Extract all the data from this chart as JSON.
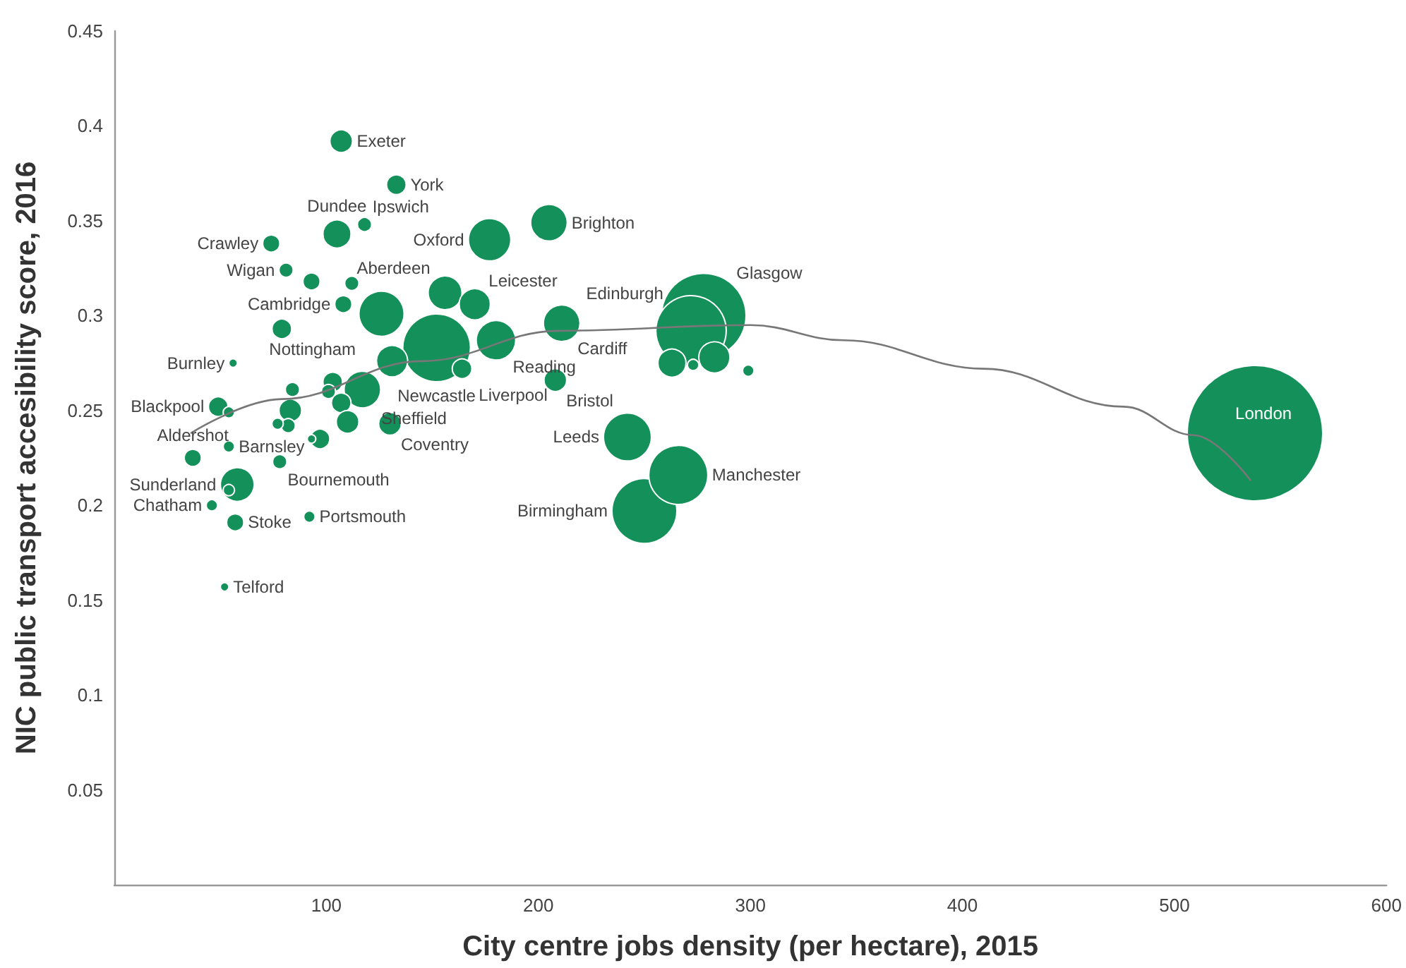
{
  "chart_data": {
    "type": "bubble",
    "xlabel": "City centre jobs density (per hectare), 2015",
    "ylabel": "NIC public transport accesibility score, 2016",
    "xlim": [
      0,
      600
    ],
    "xticks": [
      100,
      200,
      300,
      400,
      500,
      600
    ],
    "ylim": [
      0,
      0.45
    ],
    "yticks": [
      0.05,
      0.1,
      0.15,
      0.2,
      0.25,
      0.3,
      0.35,
      0.4,
      0.45
    ],
    "series": [
      {
        "color": "#14915a",
        "x": [
          538,
          278,
          272,
          250,
          266,
          242,
          152,
          126,
          177,
          205,
          211,
          180,
          156,
          170,
          107,
          133,
          105,
          118,
          74,
          81,
          93,
          112,
          108,
          79,
          56,
          164,
          208,
          117,
          103,
          101,
          107,
          84,
          83,
          82,
          77,
          110,
          130,
          97,
          93,
          49,
          54,
          54,
          37,
          78,
          58,
          54,
          46,
          92,
          57,
          52,
          131,
          283,
          263,
          273,
          299
        ],
        "values": [
          0.238,
          0.3,
          0.292,
          0.197,
          0.216,
          0.236,
          0.283,
          0.301,
          0.34,
          0.349,
          0.296,
          0.287,
          0.312,
          0.306,
          0.392,
          0.369,
          0.343,
          0.348,
          0.338,
          0.324,
          0.318,
          0.317,
          0.306,
          0.293,
          0.275,
          0.272,
          0.266,
          0.261,
          0.265,
          0.26,
          0.254,
          0.261,
          0.25,
          0.242,
          0.243,
          0.244,
          0.243,
          0.235,
          0.235,
          0.252,
          0.249,
          0.231,
          0.225,
          0.223,
          0.211,
          0.208,
          0.2,
          0.194,
          0.191,
          0.157,
          0.276,
          0.278,
          0.275,
          0.274,
          0.271
        ],
        "sizes": [
          1,
          0.39,
          0.27,
          0.23,
          0.19,
          0.125,
          0.25,
          0.111,
          0.098,
          0.073,
          0.073,
          0.085,
          0.0625,
          0.053,
          0.028,
          0.021,
          0.043,
          0.011,
          0.016,
          0.011,
          0.016,
          0.011,
          0.016,
          0.021,
          0.004,
          0.021,
          0.028,
          0.073,
          0.021,
          0.011,
          0.021,
          0.011,
          0.028,
          0.011,
          0.007,
          0.028,
          0.028,
          0.021,
          0.004,
          0.021,
          0.007,
          0.007,
          0.016,
          0.011,
          0.0625,
          0.007,
          0.007,
          0.007,
          0.016,
          0.004,
          0.053,
          0.053,
          0.043,
          0.007,
          0.007
        ]
      },
      {
        "type": "line",
        "color": "#777777",
        "x": [
          36,
          79,
          145,
          210,
          300,
          344,
          410,
          476,
          509,
          536
        ],
        "values": [
          0.238,
          0.256,
          0.276,
          0.292,
          0.295,
          0.287,
          0.272,
          0.252,
          0.237,
          0.213
        ]
      }
    ],
    "annotations": [
      {
        "text": "London",
        "x": 538,
        "y": 0.238
      },
      {
        "text": "Glasgow",
        "x": 278,
        "y": 0.3
      },
      {
        "text": "Edinburgh",
        "x": 272,
        "y": 0.292
      },
      {
        "text": "Birmingham",
        "x": 250,
        "y": 0.197
      },
      {
        "text": "Manchester",
        "x": 266,
        "y": 0.216
      },
      {
        "text": "Leeds",
        "x": 242,
        "y": 0.236
      },
      {
        "text": "Newcastle",
        "x": 152,
        "y": 0.283
      },
      {
        "text": "Nottingham",
        "x": 126,
        "y": 0.301
      },
      {
        "text": "Oxford",
        "x": 177,
        "y": 0.34
      },
      {
        "text": "Brighton",
        "x": 205,
        "y": 0.349
      },
      {
        "text": "Cardiff",
        "x": 211,
        "y": 0.296
      },
      {
        "text": "Reading",
        "x": 180,
        "y": 0.287
      },
      {
        "text": "Aberdeen",
        "x": 156,
        "y": 0.312
      },
      {
        "text": "Leicester",
        "x": 170,
        "y": 0.306
      },
      {
        "text": "Exeter",
        "x": 107,
        "y": 0.392
      },
      {
        "text": "York",
        "x": 133,
        "y": 0.369
      },
      {
        "text": "Dundee",
        "x": 105,
        "y": 0.343
      },
      {
        "text": "Ipswich",
        "x": 118,
        "y": 0.348
      },
      {
        "text": "Crawley",
        "x": 74,
        "y": 0.338
      },
      {
        "text": "Wigan",
        "x": 81,
        "y": 0.324
      },
      {
        "text": "Cambridge",
        "x": 108,
        "y": 0.306
      },
      {
        "text": "Burnley",
        "x": 56,
        "y": 0.275
      },
      {
        "text": "Liverpool",
        "x": 164,
        "y": 0.272
      },
      {
        "text": "Bristol",
        "x": 208,
        "y": 0.266
      },
      {
        "text": "Sheffield",
        "x": 117,
        "y": 0.261
      },
      {
        "text": "Coventry",
        "x": 130,
        "y": 0.243
      },
      {
        "text": "Blackpool",
        "x": 49,
        "y": 0.252
      },
      {
        "text": "Barnsley",
        "x": 54,
        "y": 0.231
      },
      {
        "text": "Aldershot",
        "x": 37,
        "y": 0.225
      },
      {
        "text": "Bournemouth",
        "x": 78,
        "y": 0.223
      },
      {
        "text": "Sunderland",
        "x": 58,
        "y": 0.211
      },
      {
        "text": "Chatham",
        "x": 46,
        "y": 0.2
      },
      {
        "text": "Portsmouth",
        "x": 92,
        "y": 0.194
      },
      {
        "text": "Stoke",
        "x": 57,
        "y": 0.191
      },
      {
        "text": "Telford",
        "x": 52,
        "y": 0.157
      }
    ]
  }
}
